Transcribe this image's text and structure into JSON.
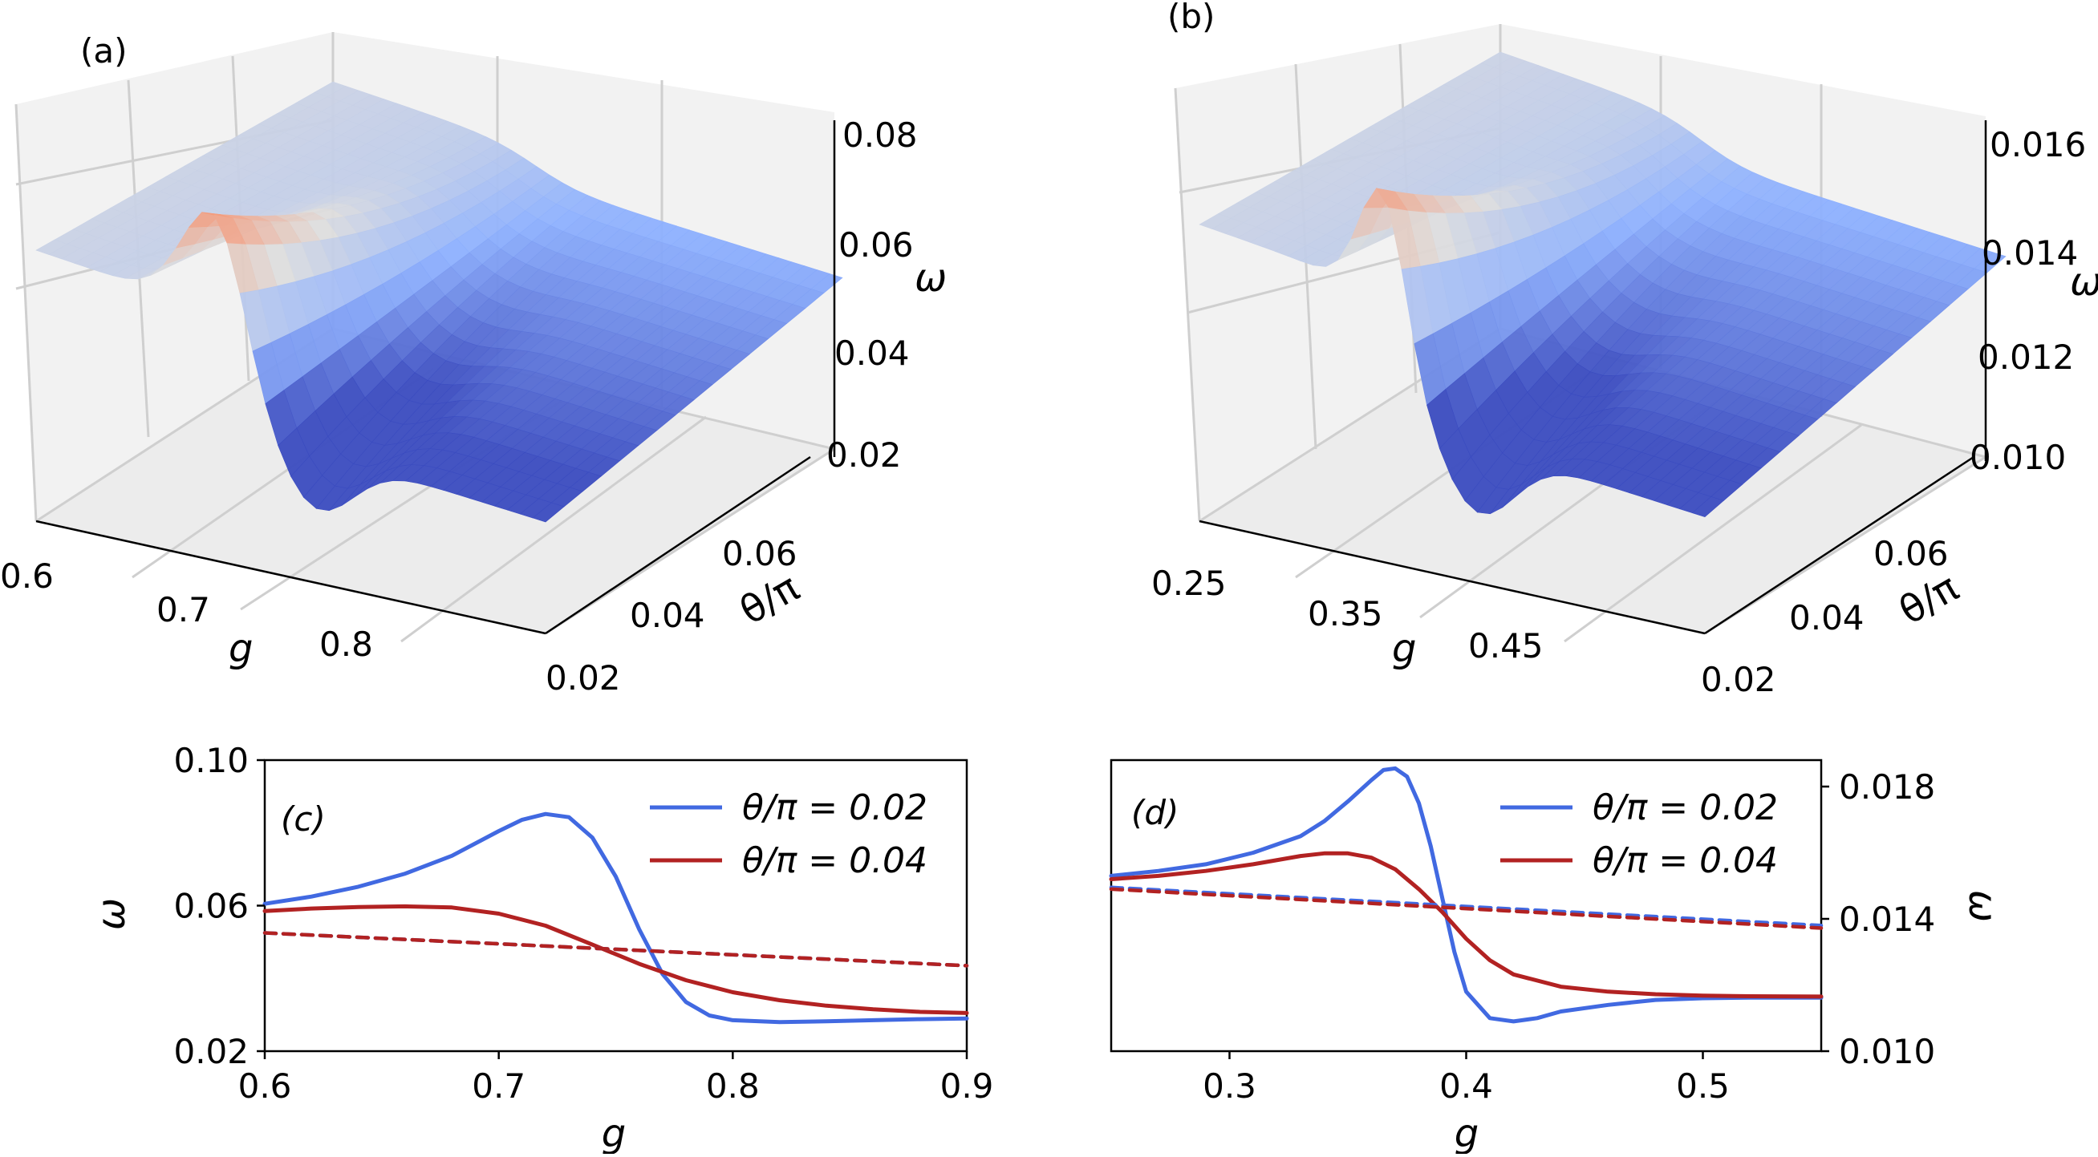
{
  "chart_data": [
    {
      "id": "a",
      "type": "surface3d",
      "panel_label": "(a)",
      "xlabel": "g",
      "ylabel": "θ/π",
      "zlabel": "ω",
      "xticks": [
        "0.6",
        "0.7",
        "0.8"
      ],
      "yticks": [
        "0.02",
        "0.04",
        "0.06"
      ],
      "zticks": [
        "0.02",
        "0.04",
        "0.06",
        "0.08"
      ],
      "xlim": [
        0.6,
        0.9
      ],
      "ylim": [
        0.02,
        0.08
      ],
      "zlim": [
        0.02,
        0.08
      ],
      "colormap": [
        "#3b4cc0",
        "#8db0fe",
        "#dddddd",
        "#f49a7b",
        "#b40426"
      ],
      "surface": {
        "g_peak": 0.72,
        "peak_max": 0.075,
        "low_min": 0.028
      }
    },
    {
      "id": "b",
      "type": "surface3d",
      "panel_label": "(b)",
      "xlabel": "g",
      "ylabel": "θ/π",
      "zlabel": "ω",
      "xticks": [
        "0.25",
        "0.35",
        "0.45"
      ],
      "yticks": [
        "0.02",
        "0.04",
        "0.06"
      ],
      "zticks": [
        "0.010",
        "0.012",
        "0.014",
        "0.016"
      ],
      "xlim": [
        0.25,
        0.55
      ],
      "ylim": [
        0.02,
        0.08
      ],
      "zlim": [
        0.01,
        0.016
      ],
      "colormap": [
        "#3b4cc0",
        "#8db0fe",
        "#dddddd",
        "#f49a7b",
        "#b40426"
      ],
      "surface": {
        "g_peak": 0.37,
        "peak_max": 0.0185,
        "low_min": 0.0105
      }
    },
    {
      "id": "c",
      "type": "line",
      "panel_label": "(c)",
      "xlabel": "g",
      "ylabel": "ω",
      "xlim": [
        0.6,
        0.9
      ],
      "ylim": [
        0.02,
        0.1
      ],
      "xticks": [
        "0.6",
        "0.7",
        "0.8",
        "0.9"
      ],
      "yticks": [
        "0.02",
        "0.06",
        "0.10"
      ],
      "legend": {
        "position": "top-right"
      },
      "series": [
        {
          "name": "θ/π = 0.02",
          "color": "#4169e1",
          "style": "solid",
          "x": [
            0.6,
            0.62,
            0.64,
            0.66,
            0.68,
            0.7,
            0.71,
            0.72,
            0.73,
            0.74,
            0.75,
            0.76,
            0.77,
            0.78,
            0.79,
            0.8,
            0.82,
            0.84,
            0.86,
            0.88,
            0.9
          ],
          "y": [
            0.0605,
            0.0625,
            0.0652,
            0.0688,
            0.0737,
            0.0805,
            0.0836,
            0.0852,
            0.0843,
            0.0787,
            0.068,
            0.0535,
            0.0412,
            0.0335,
            0.0298,
            0.0285,
            0.028,
            0.0282,
            0.0285,
            0.0288,
            0.029
          ]
        },
        {
          "name": "θ/π = 0.04",
          "color": "#b22222",
          "style": "solid",
          "x": [
            0.6,
            0.62,
            0.64,
            0.66,
            0.68,
            0.7,
            0.72,
            0.74,
            0.76,
            0.78,
            0.8,
            0.82,
            0.84,
            0.86,
            0.88,
            0.9
          ],
          "y": [
            0.0585,
            0.0592,
            0.0596,
            0.0598,
            0.0595,
            0.0578,
            0.0545,
            0.0493,
            0.044,
            0.0395,
            0.0362,
            0.034,
            0.0325,
            0.0315,
            0.0308,
            0.0305
          ]
        },
        {
          "name": "θ/π = 0.02 (dashed)",
          "color": "#4169e1",
          "style": "dashed",
          "x": [
            0.6,
            0.9
          ],
          "y": [
            0.0525,
            0.0435
          ]
        },
        {
          "name": "θ/π = 0.04 (dashed)",
          "color": "#b22222",
          "style": "dashed",
          "x": [
            0.6,
            0.9
          ],
          "y": [
            0.0525,
            0.0435
          ]
        }
      ]
    },
    {
      "id": "d",
      "type": "line",
      "panel_label": "(d)",
      "xlabel": "g",
      "ylabel": "ω",
      "xlim": [
        0.25,
        0.55
      ],
      "ylim": [
        0.01,
        0.0188
      ],
      "xticks": [
        "0.3",
        "0.4",
        "0.5"
      ],
      "yticks": [
        "0.010",
        "0.014",
        "0.018"
      ],
      "yaxis_side": "right",
      "legend": {
        "position": "top-right"
      },
      "series": [
        {
          "name": "θ/π = 0.02",
          "color": "#4169e1",
          "style": "solid",
          "x": [
            0.25,
            0.27,
            0.29,
            0.31,
            0.33,
            0.34,
            0.35,
            0.36,
            0.365,
            0.37,
            0.375,
            0.38,
            0.385,
            0.39,
            0.395,
            0.4,
            0.41,
            0.42,
            0.43,
            0.44,
            0.46,
            0.48,
            0.5,
            0.52,
            0.55
          ],
          "y": [
            0.0153,
            0.01545,
            0.01565,
            0.016,
            0.0165,
            0.01695,
            0.01755,
            0.0182,
            0.0185,
            0.01855,
            0.0183,
            0.0175,
            0.0162,
            0.0146,
            0.013,
            0.0118,
            0.011,
            0.0109,
            0.011,
            0.0112,
            0.0114,
            0.01155,
            0.0116,
            0.01162,
            0.01162
          ]
        },
        {
          "name": "θ/π = 0.04",
          "color": "#b22222",
          "style": "solid",
          "x": [
            0.25,
            0.27,
            0.29,
            0.31,
            0.33,
            0.34,
            0.35,
            0.36,
            0.37,
            0.38,
            0.39,
            0.4,
            0.41,
            0.42,
            0.44,
            0.46,
            0.48,
            0.5,
            0.52,
            0.55
          ],
          "y": [
            0.0152,
            0.0153,
            0.01545,
            0.01565,
            0.0159,
            0.01598,
            0.01598,
            0.01585,
            0.0155,
            0.0149,
            0.0142,
            0.0134,
            0.01275,
            0.01232,
            0.01195,
            0.0118,
            0.01172,
            0.01168,
            0.01166,
            0.01165
          ]
        },
        {
          "name": "θ/π = 0.02 (dashed)",
          "color": "#4169e1",
          "style": "dashed",
          "x": [
            0.25,
            0.55
          ],
          "y": [
            0.01495,
            0.0138
          ]
        },
        {
          "name": "θ/π = 0.04 (dashed)",
          "color": "#b22222",
          "style": "dashed",
          "x": [
            0.25,
            0.55
          ],
          "y": [
            0.0149,
            0.01372
          ]
        }
      ]
    }
  ]
}
